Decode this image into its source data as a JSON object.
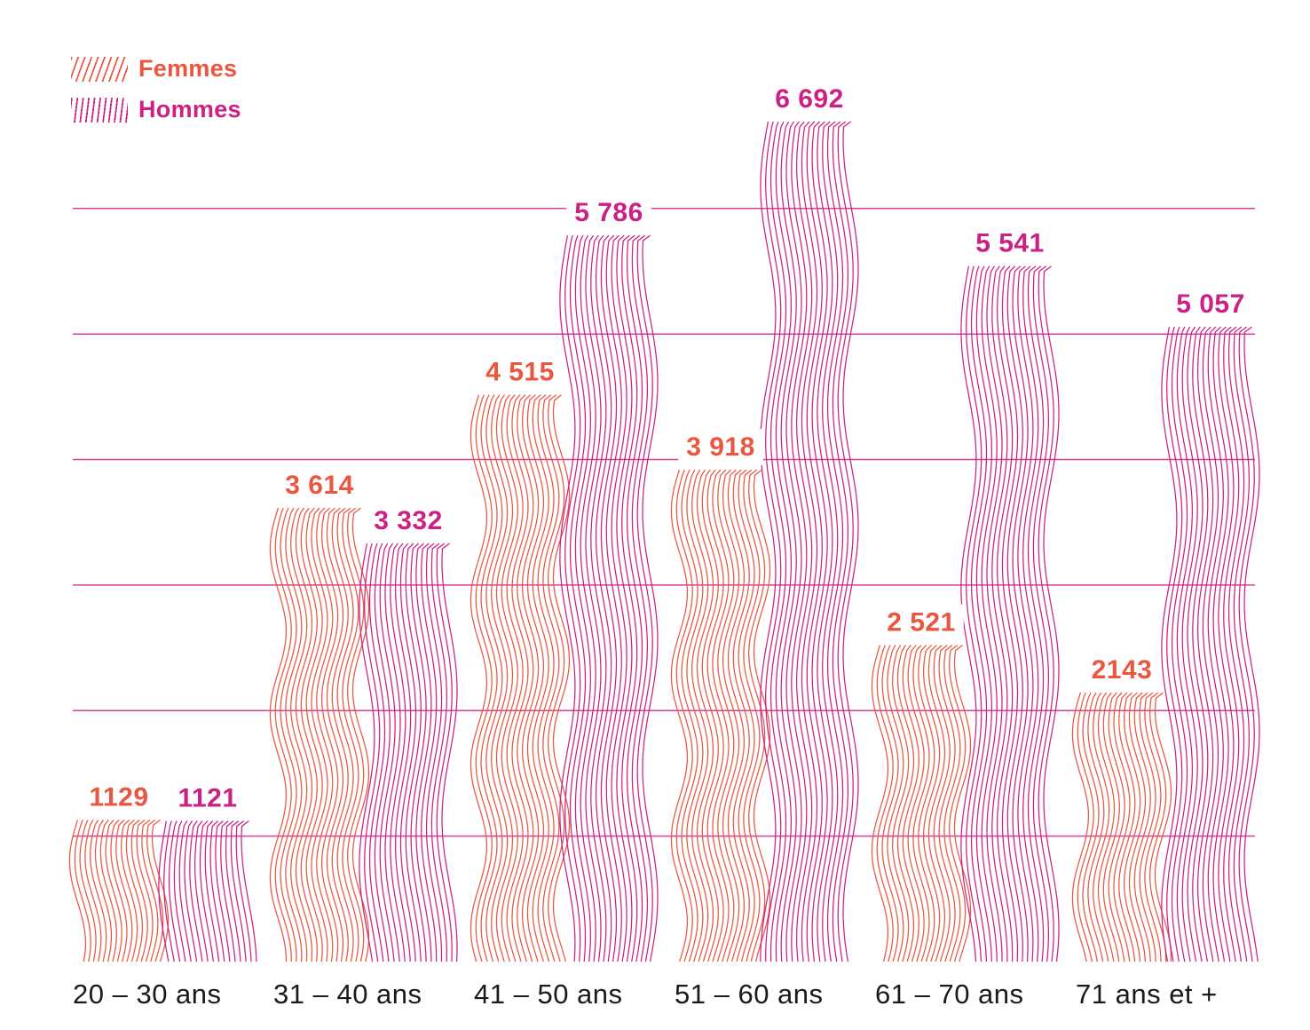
{
  "colors": {
    "femmes": "#EA5640",
    "hommes": "#CD2084",
    "gridline": "#DE3D98",
    "axis_label": "#1A1A1A",
    "background": "#FFFFFF"
  },
  "chart_data": {
    "type": "bar",
    "title": "",
    "xlabel": "",
    "ylabel": "",
    "categories": [
      "20 – 30 ans",
      "31 – 40 ans",
      "41 – 50 ans",
      "51 – 60 ans",
      "61 – 70 ans",
      "71 ans et +"
    ],
    "series": [
      {
        "name": "Femmes",
        "color": "#EA5640",
        "values": [
          1129,
          3614,
          4515,
          3918,
          2521,
          2143
        ],
        "display_labels": [
          "1129",
          "3 614",
          "4 515",
          "3 918",
          "2 521",
          "2143"
        ]
      },
      {
        "name": "Hommes",
        "color": "#CD2084",
        "values": [
          1121,
          3332,
          5786,
          6692,
          5541,
          5057
        ],
        "display_labels": [
          "1121",
          "3 332",
          "5 786",
          "6 692",
          "5 541",
          "5 057"
        ]
      }
    ],
    "ylim": [
      0,
      7000
    ],
    "gridline_values": [
      1000,
      2000,
      3000,
      4000,
      5000,
      6000
    ],
    "grid": true,
    "y_axis_tick_labels_visible": false,
    "legend_position": "top-left",
    "bar_style": "wavy-hatched-lines"
  }
}
